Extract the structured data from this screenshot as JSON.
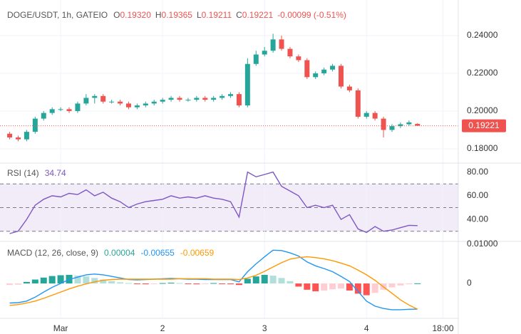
{
  "chart_data": [
    {
      "type": "candlestick",
      "title": "DOGE/USDT, 1h, GATEIO",
      "ohlc_labels": [
        "O",
        "H",
        "L",
        "C"
      ],
      "ohlc_values": [
        "0.19320",
        "0.19365",
        "0.19211",
        "0.19221"
      ],
      "change": "-0.00099 (-0.51%)",
      "up_color": "#26a69a",
      "down_color": "#ef5350",
      "xlim": [
        -12.6,
        93.1
      ],
      "x": [
        -12,
        -10,
        -8,
        -6,
        -4,
        -2,
        0,
        2,
        4,
        6,
        8,
        10,
        12,
        14,
        16,
        18,
        20,
        22,
        24,
        26,
        28,
        30,
        32,
        34,
        36,
        38,
        40,
        42,
        44,
        46,
        48,
        50,
        52,
        54,
        56,
        58,
        60,
        62,
        64,
        66,
        68,
        70,
        72,
        74,
        76,
        78,
        80,
        82,
        84
      ],
      "open": [
        0.188,
        0.186,
        0.185,
        0.189,
        0.196,
        0.199,
        0.201,
        0.201,
        0.2,
        0.204,
        0.207,
        0.208,
        0.205,
        0.205,
        0.204,
        0.202,
        0.203,
        0.204,
        0.205,
        0.206,
        0.207,
        0.206,
        0.206,
        0.207,
        0.206,
        0.207,
        0.208,
        0.209,
        0.203,
        0.225,
        0.23,
        0.232,
        0.238,
        0.233,
        0.229,
        0.227,
        0.218,
        0.22,
        0.222,
        0.224,
        0.213,
        0.211,
        0.197,
        0.199,
        0.196,
        0.19,
        0.192,
        0.193,
        0.1932
      ],
      "high": [
        0.189,
        0.187,
        0.19,
        0.197,
        0.2,
        0.202,
        0.202,
        0.202,
        0.205,
        0.209,
        0.209,
        0.209,
        0.206,
        0.206,
        0.205,
        0.204,
        0.205,
        0.206,
        0.207,
        0.208,
        0.208,
        0.207,
        0.208,
        0.208,
        0.208,
        0.209,
        0.21,
        0.21,
        0.228,
        0.232,
        0.234,
        0.241,
        0.24,
        0.234,
        0.23,
        0.228,
        0.221,
        0.223,
        0.225,
        0.225,
        0.214,
        0.212,
        0.2,
        0.2,
        0.197,
        0.193,
        0.194,
        0.195,
        0.19365
      ],
      "low": [
        0.185,
        0.184,
        0.184,
        0.188,
        0.195,
        0.198,
        0.2,
        0.199,
        0.199,
        0.203,
        0.204,
        0.204,
        0.204,
        0.203,
        0.201,
        0.201,
        0.202,
        0.203,
        0.204,
        0.205,
        0.205,
        0.205,
        0.205,
        0.205,
        0.205,
        0.206,
        0.207,
        0.202,
        0.202,
        0.224,
        0.229,
        0.231,
        0.232,
        0.228,
        0.226,
        0.217,
        0.217,
        0.219,
        0.221,
        0.212,
        0.21,
        0.196,
        0.196,
        0.195,
        0.186,
        0.189,
        0.191,
        0.192,
        0.19211
      ],
      "close": [
        0.186,
        0.185,
        0.189,
        0.196,
        0.199,
        0.201,
        0.201,
        0.2,
        0.204,
        0.207,
        0.208,
        0.205,
        0.205,
        0.204,
        0.202,
        0.203,
        0.204,
        0.205,
        0.206,
        0.207,
        0.206,
        0.206,
        0.207,
        0.206,
        0.207,
        0.208,
        0.209,
        0.203,
        0.225,
        0.23,
        0.232,
        0.238,
        0.233,
        0.229,
        0.227,
        0.218,
        0.22,
        0.222,
        0.224,
        0.213,
        0.211,
        0.197,
        0.199,
        0.196,
        0.19,
        0.192,
        0.193,
        0.194,
        0.19221
      ],
      "ylim": [
        0.1728,
        0.2589
      ],
      "yticks": [
        {
          "value": 0.18,
          "label": "0.18000"
        },
        {
          "value": 0.2,
          "label": "0.20000"
        },
        {
          "value": 0.22,
          "label": "0.22000"
        },
        {
          "value": 0.24,
          "label": "0.24000"
        }
      ],
      "grid": true
    },
    {
      "type": "line",
      "title": "RSI (14)",
      "last_label": "34.74",
      "xlim": [
        -12.6,
        93.1
      ],
      "x": [
        -12,
        -10,
        -8,
        -6,
        -4,
        -2,
        0,
        2,
        4,
        6,
        8,
        10,
        12,
        14,
        16,
        18,
        20,
        22,
        24,
        26,
        28,
        30,
        32,
        34,
        36,
        38,
        40,
        42,
        44,
        46,
        48,
        50,
        52,
        54,
        56,
        58,
        60,
        62,
        64,
        66,
        68,
        70,
        72,
        74,
        76,
        78,
        80,
        82,
        84
      ],
      "series": [
        {
          "color": "#7e57c2",
          "values": [
            28,
            30,
            40,
            52,
            57,
            60,
            59,
            62,
            61,
            65,
            60,
            63,
            58,
            55,
            50,
            53,
            55,
            56,
            57,
            60,
            58,
            59,
            58,
            60,
            58,
            57,
            55,
            42,
            80,
            76,
            78,
            80,
            68,
            64,
            60,
            50,
            52,
            50,
            52,
            40,
            44,
            32,
            29,
            34,
            30,
            31,
            33,
            35,
            34.74
          ]
        }
      ],
      "bands": [
        70,
        50,
        30
      ],
      "band_color": "#ede7f6",
      "ylim": [
        22,
        87
      ],
      "yticks": [
        {
          "value": 40,
          "label": "40.00"
        },
        {
          "value": 60,
          "label": "60.00"
        },
        {
          "value": 80,
          "label": "80.00"
        }
      ]
    },
    {
      "type": "macd",
      "title": "MACD (12, 26, close, 9)",
      "legend_values": [
        "0.00004",
        "-0.00655",
        "-0.00659"
      ],
      "legend_colors": [
        "#26a69a",
        "#2196f3",
        "#ff9800"
      ],
      "xlim": [
        -12.6,
        93.1
      ],
      "x": [
        -12,
        -10,
        -8,
        -6,
        -4,
        -2,
        0,
        2,
        4,
        6,
        8,
        10,
        12,
        14,
        16,
        18,
        20,
        22,
        24,
        26,
        28,
        30,
        32,
        34,
        36,
        38,
        40,
        42,
        44,
        46,
        48,
        50,
        52,
        54,
        56,
        58,
        60,
        62,
        64,
        66,
        68,
        70,
        72,
        74,
        76,
        78,
        80,
        82,
        84
      ],
      "histogram": {
        "colors": [
          "#26a69a",
          "#b2dfdb",
          "#ff5252",
          "#ffcdd2"
        ],
        "values": [
          -0.0004,
          -0.0003,
          0.0004,
          0.001,
          0.0015,
          0.0019,
          0.0021,
          0.0022,
          0.002,
          0.0018,
          0.0014,
          0.001,
          0.0006,
          0.0003,
          0.0001,
          -0.0001,
          -0.0002,
          -0.0001,
          0.0001,
          0.0002,
          0.0001,
          -0.0001,
          -0.0002,
          -0.0001,
          0.0001,
          -0.0001,
          -0.0002,
          -0.0004,
          0.0012,
          0.0018,
          0.0022,
          0.002,
          0.0014,
          0.0006,
          -0.0008,
          -0.0016,
          -0.002,
          -0.0018,
          -0.0015,
          -0.0013,
          -0.0018,
          -0.0026,
          -0.003,
          -0.0024,
          -0.0016,
          -0.001,
          -0.0005,
          -0.0002,
          4e-05
        ]
      },
      "series": [
        {
          "color": "#2196f3",
          "values": [
            -0.005,
            -0.0049,
            -0.0045,
            -0.0035,
            -0.0022,
            -0.001,
            0.0,
            0.001,
            0.0016,
            0.0022,
            0.0024,
            0.0022,
            0.0018,
            0.0014,
            0.001,
            0.0009,
            0.001,
            0.0011,
            0.0012,
            0.0013,
            0.0012,
            0.0011,
            0.0011,
            0.001,
            0.001,
            0.001,
            0.001,
            0.0004,
            0.003,
            0.005,
            0.0068,
            0.0085,
            0.0084,
            0.0078,
            0.007,
            0.0055,
            0.0045,
            0.0038,
            0.003,
            0.0018,
            0.0005,
            -0.002,
            -0.0045,
            -0.0058,
            -0.0064,
            -0.0067,
            -0.0067,
            -0.0066,
            -0.00655
          ]
        },
        {
          "color": "#ff9800",
          "values": [
            -0.0056,
            -0.0054,
            -0.005,
            -0.0045,
            -0.0038,
            -0.003,
            -0.0022,
            -0.0014,
            -0.0007,
            -0.0001,
            0.0004,
            0.0008,
            0.001,
            0.0011,
            0.0011,
            0.0011,
            0.0011,
            0.0011,
            0.0011,
            0.0011,
            0.0012,
            0.0012,
            0.0012,
            0.0012,
            0.0011,
            0.0011,
            0.0011,
            0.001,
            0.0014,
            0.0021,
            0.0031,
            0.0042,
            0.0053,
            0.0062,
            0.0066,
            0.0068,
            0.0066,
            0.0063,
            0.0058,
            0.0052,
            0.0045,
            0.0034,
            0.0022,
            0.0008,
            -0.0009,
            -0.0025,
            -0.0042,
            -0.0055,
            -0.00659
          ]
        }
      ],
      "ylim": [
        -0.0089,
        0.01055
      ],
      "yticks": [
        0,
        {
          "value": 0.01,
          "label": "0.01000"
        }
      ],
      "xticks": [
        {
          "value": 0,
          "label": "Mar"
        },
        {
          "value": 24,
          "label": "2"
        },
        {
          "value": 48,
          "label": "3"
        },
        {
          "value": 72,
          "label": "4"
        },
        {
          "value": 90,
          "label": "18:00"
        }
      ]
    }
  ]
}
